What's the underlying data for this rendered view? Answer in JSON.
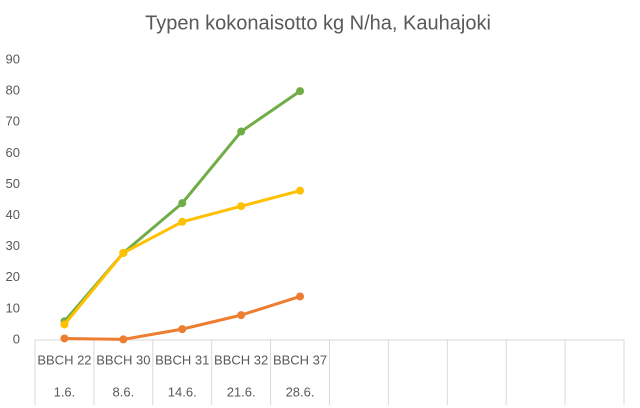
{
  "chart_data": {
    "type": "line",
    "title": "Typen kokonaisotto kg N/ha, Kauhajoki",
    "categories": [
      "BBCH 22",
      "BBCH 30",
      "BBCH 31",
      "BBCH 32",
      "BBCH 37",
      null,
      null,
      null,
      null,
      null
    ],
    "sub_categories": [
      "1.6.",
      "8.6.",
      "14.6.",
      "21.6.",
      "28.6.",
      null,
      null,
      null,
      null,
      null
    ],
    "series": [
      {
        "color": "#70ad47",
        "values": [
          6,
          28,
          44,
          67,
          80,
          null,
          null,
          null,
          null,
          null
        ]
      },
      {
        "color": "#ffc000",
        "values": [
          5,
          28,
          38,
          43,
          48,
          null,
          null,
          null,
          null,
          null
        ]
      },
      {
        "color": "#ed7d31",
        "values": [
          0.5,
          0.2,
          3.5,
          8,
          14,
          null,
          null,
          null,
          null,
          null
        ]
      }
    ],
    "ylim": [
      0,
      90
    ],
    "yticks": [
      0,
      10,
      20,
      30,
      40,
      50,
      60,
      70,
      80,
      90
    ],
    "grid": false
  }
}
